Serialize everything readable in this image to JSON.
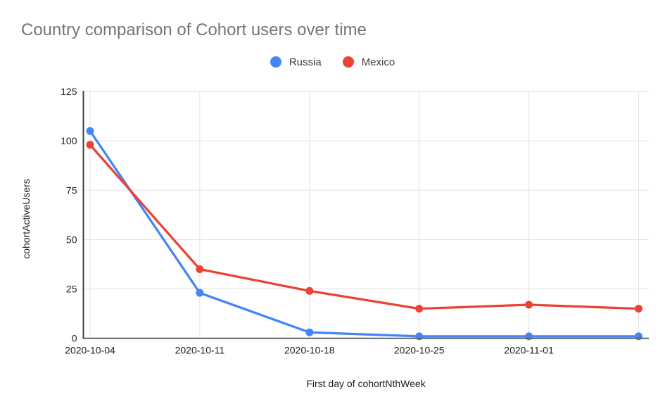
{
  "header": {
    "title": "Country comparison of Cohort users over time"
  },
  "chart_data": {
    "type": "line",
    "title": "Country comparison of Cohort users over time",
    "xlabel": "First day of cohortNthWeek",
    "ylabel": "cohortActiveUsers",
    "categories": [
      "2020-10-04",
      "2020-10-11",
      "2020-10-18",
      "2020-10-25",
      "2020-11-01",
      ""
    ],
    "series": [
      {
        "name": "Russia",
        "color": "#4285f4",
        "values": [
          105,
          23,
          3,
          1,
          1,
          1
        ]
      },
      {
        "name": "Mexico",
        "color": "#ea4335",
        "values": [
          98,
          35,
          24,
          15,
          17,
          15
        ]
      }
    ],
    "ylim": [
      0,
      125
    ],
    "yticks": [
      0,
      25,
      50,
      75,
      100,
      125
    ],
    "grid": true,
    "legend_position": "top",
    "marker": "circle"
  },
  "colors": {
    "title_text": "#757575",
    "axis_text": "#202124",
    "gridline": "#e2e2e2",
    "x_axis_line": "#5f6368",
    "y_axis_line": "#3c4043",
    "background": "#ffffff"
  }
}
